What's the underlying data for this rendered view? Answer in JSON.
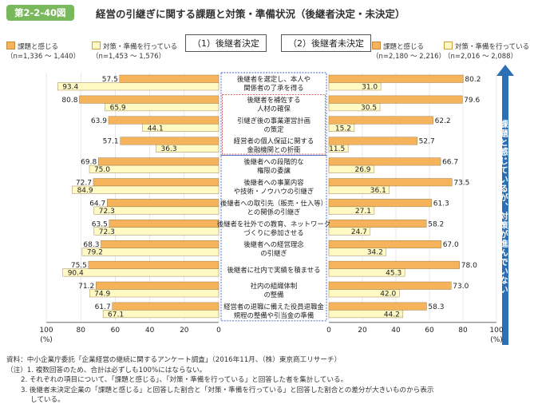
{
  "header": {
    "figure_number": "第2-2-40図",
    "title": "経営の引継ぎに関する課題と対策・準備状況（後継者決定・未決定）"
  },
  "sections": {
    "left": "（1）後継者決定",
    "right": "（2）後継者未決定"
  },
  "legend_left": {
    "issue_label": "課題と感じる",
    "issue_n": "（n=1,336 ～ 1,440）",
    "measure_label": "対策・準備を行っている",
    "measure_n": "（n=1,453 ～ 1,576）"
  },
  "legend_right": {
    "issue_label": "課題と感じる",
    "issue_n": "（n=2,180 ～ 2,216）",
    "measure_label": "対策・準備を行っている",
    "measure_n": "（n=2,016 ～ 2,088）"
  },
  "arrow_label": "課題と感じているが、対策が進んでいない",
  "notes": [
    "資料：中小企業庁委託「企業経営の継続に関するアンケート調査」（2016年11月、（株）東京商工リサーチ）",
    "（注）1. 複数回答のため、合計は必ずしも100%にはならない。",
    "2. それぞれの項目について、「課題と感じる」、「対策・準備を行っている」と回答した者を集計している。",
    "3. 後継者未決定企業の「課題と感じる」と回答した割合と「対策・準備を行っている」と回答した割合との差分が大きいものから表示",
    "している。"
  ],
  "colors": {
    "issue": "#f5b35c",
    "measure": "#fff9c4",
    "bar_stroke": "#8a6a3a",
    "group_a_border": "#d9534f",
    "group_b_border": "#3a5fbf",
    "arrow": "#2c6fb4",
    "badge": "#7ab85e"
  },
  "chart_data": {
    "type": "bar",
    "orientation": "horizontal",
    "xlim": [
      0,
      100
    ],
    "axis_unit": "(%)",
    "ticks_left": [
      "100",
      "80",
      "60",
      "40",
      "20",
      "0"
    ],
    "ticks_right": [
      "0",
      "20",
      "40",
      "60",
      "80",
      "100"
    ],
    "categories": [
      [
        "後継者を選定し、本人や",
        "関係者の了承を得る"
      ],
      [
        "後継者を補佐する",
        "人材の確保"
      ],
      [
        "引継ぎ後の事業運営計画",
        "の策定"
      ],
      [
        "経営者の個人保証に関する",
        "金融機関との折衝"
      ],
      [
        "後継者への段階的な",
        "権限の委譲"
      ],
      [
        "後継者への事業内容",
        "や技術・ノウハウの引継ぎ"
      ],
      [
        "後継者への取引先（販売・仕入等）",
        "との関係の引継ぎ"
      ],
      [
        "後継者を社外での教育、ネットワーク",
        "づくりに参加させる"
      ],
      [
        "後継者への経営理念",
        "の引継ぎ"
      ],
      [
        "後継者に社内で実績を積ませる"
      ],
      [
        "社内の組織体制",
        "の整備"
      ],
      [
        "経営者の退職に備えた役員退職金",
        "規程の整備や引当金の準備"
      ]
    ],
    "series": [
      {
        "name": "課題と感じる",
        "panel": "後継者決定",
        "values": [
          57.5,
          80.8,
          63.9,
          57.1,
          69.8,
          72.7,
          64.7,
          63.5,
          68.3,
          75.5,
          71.2,
          61.7
        ]
      },
      {
        "name": "対策・準備を行っている",
        "panel": "後継者決定",
        "values": [
          93.4,
          65.9,
          44.1,
          36.3,
          75.0,
          84.9,
          72.3,
          72.3,
          79.2,
          90.4,
          74.9,
          67.1
        ]
      },
      {
        "name": "課題と感じる",
        "panel": "後継者未決定",
        "values": [
          80.2,
          79.6,
          62.2,
          52.7,
          66.7,
          73.5,
          61.3,
          58.2,
          67.0,
          78.0,
          73.0,
          58.3
        ]
      },
      {
        "name": "対策・準備を行っている",
        "panel": "後継者未決定",
        "values": [
          31.0,
          30.5,
          15.2,
          11.5,
          26.9,
          36.1,
          27.1,
          24.7,
          34.2,
          45.3,
          42.0,
          44.2
        ]
      }
    ],
    "category_groups": [
      {
        "border": "blue",
        "indices": [
          0,
          3
        ]
      },
      {
        "border": "red",
        "indices": [
          1,
          3
        ]
      },
      {
        "border": "blue",
        "indices": [
          4,
          11
        ]
      }
    ]
  }
}
